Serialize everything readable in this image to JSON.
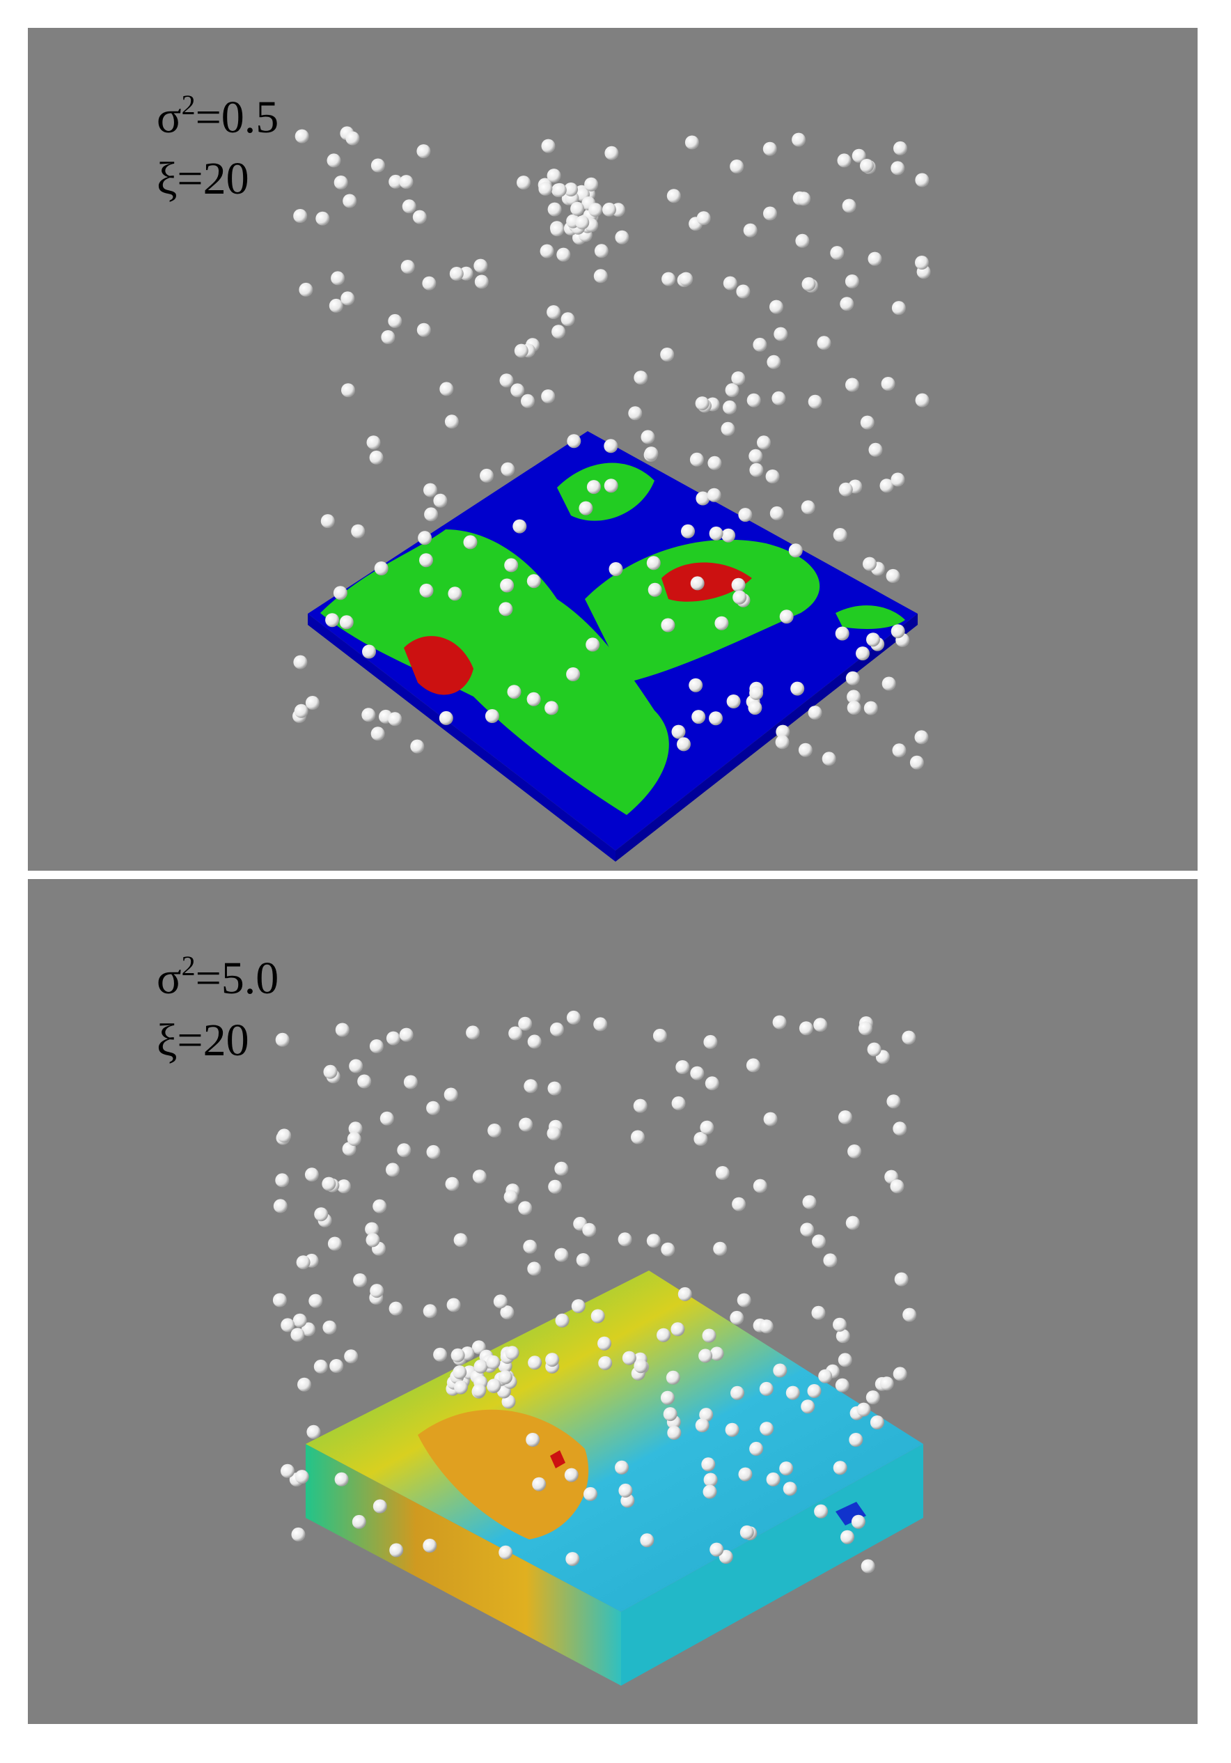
{
  "panels": [
    {
      "variance": {
        "symbol": "σ",
        "sup": "2",
        "value": "=0.5"
      },
      "length": "ξ=20"
    },
    {
      "variance": {
        "symbol": "σ",
        "sup": "2",
        "value": "=5.0"
      },
      "length": "ξ=20"
    }
  ]
}
